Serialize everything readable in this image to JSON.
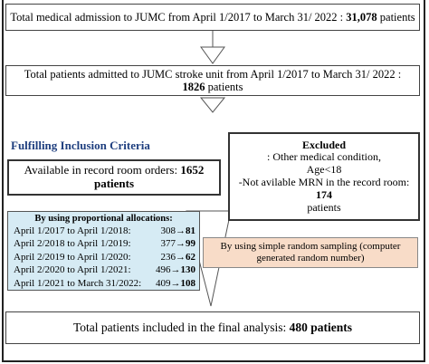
{
  "boxes": {
    "top": {
      "text": "Total medical admission to JUMC from April 1/2017  to March 31/ 2022 : ",
      "bold": "31,078",
      "tail": " patients"
    },
    "stroke": {
      "text": "Total patients admitted to JUMC stroke unit from April 1/2017 to March 31/ 2022 : ",
      "bold": "1826",
      "tail": " patients"
    },
    "inclusion_title": "Fulfilling Inclusion  Criteria",
    "available": {
      "text": "Available  in record room orders: ",
      "bold": "1652 patients"
    },
    "excluded": {
      "bold": "Excluded",
      "line1": ": Other medical condition,",
      "line2": "Age<18",
      "line3": "-Not avilable MRN in the record room:",
      "line4_bold": "174",
      "line4": " patients"
    },
    "proportional": {
      "title": "By using proportional  allocations:",
      "rows": [
        {
          "period": "April 1/2017 to April 1/2018:",
          "from": "308",
          "to": "81"
        },
        {
          "period": "April 2/2018 to April 1/2019:",
          "from": "377",
          "to": "99"
        },
        {
          "period": "April 2/2019 to April 1/2020:",
          "from": "236",
          "to": "62"
        },
        {
          "period": "April 2/2020 to April 1/2021:",
          "from": "496",
          "to": "130"
        },
        {
          "period": "April 1/2021 to March 31/2022:",
          "from": "409",
          "to": "108"
        }
      ]
    },
    "random": "By using simple random sampling (computer generated random number)",
    "final": {
      "text": "Total patients included in the final analysis:  ",
      "bold": "480 patients"
    }
  },
  "arrow_glyph": "→",
  "colors": {
    "inclusion_title": "#1f3f7f",
    "proportional_bg": "#d6ebf4",
    "random_bg": "#f8dcc8"
  }
}
